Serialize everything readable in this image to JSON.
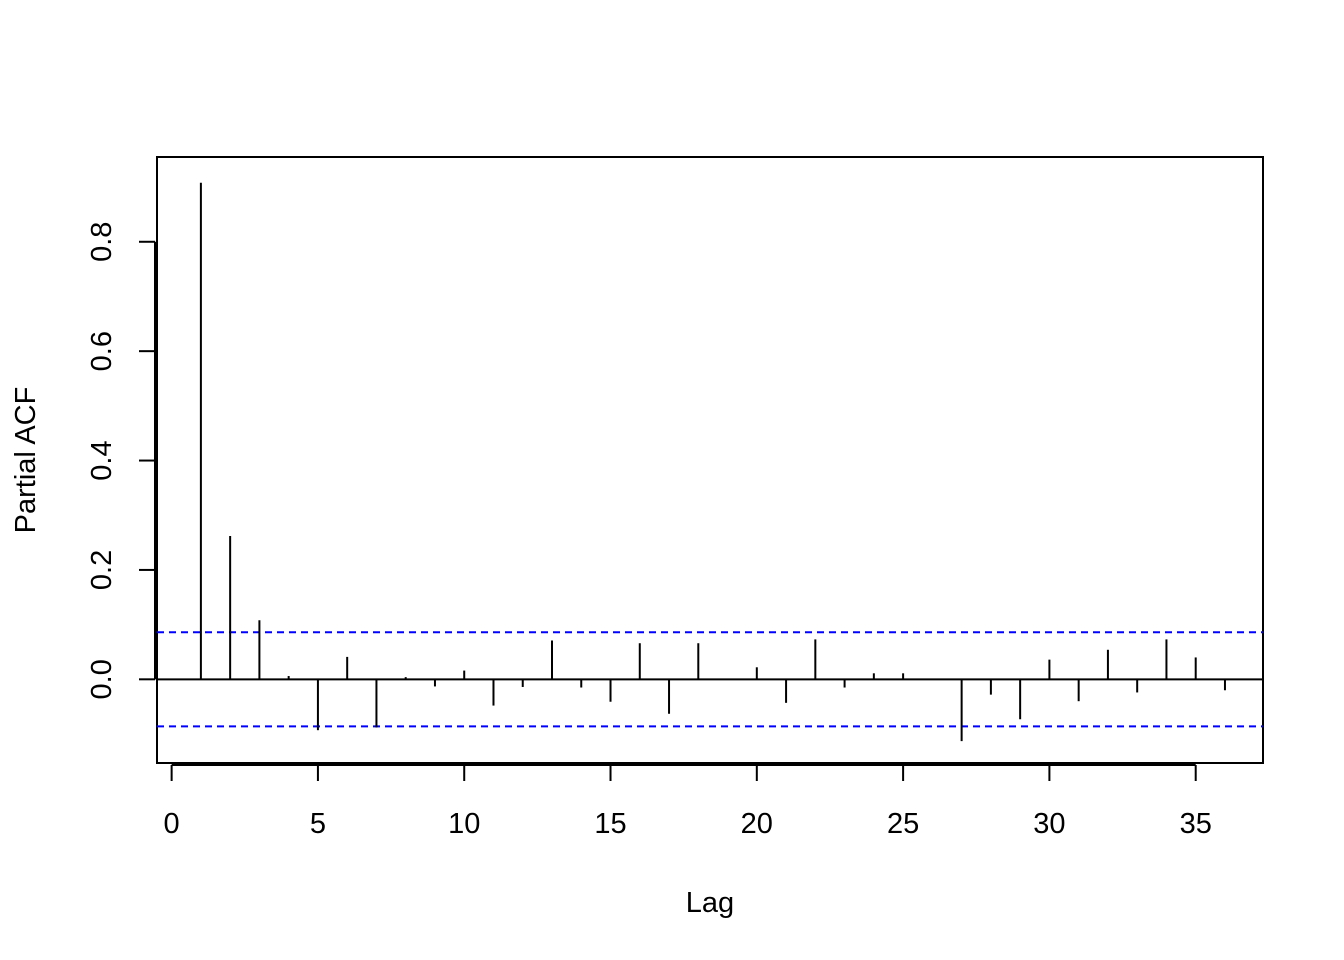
{
  "chart_data": {
    "type": "bar",
    "title": "",
    "xlabel": "Lag",
    "ylabel": "Partial ACF",
    "xlim": [
      -0.5,
      37.3
    ],
    "ylim": [
      -0.153,
      0.955
    ],
    "x_ticks": [
      0,
      5,
      10,
      15,
      20,
      25,
      30,
      35
    ],
    "y_ticks": [
      0.0,
      0.2,
      0.4,
      0.6,
      0.8
    ],
    "y_tick_labels": [
      "0.0",
      "0.2",
      "0.4",
      "0.6",
      "0.8"
    ],
    "confidence_band": 0.086,
    "confidence_color": "#0000ff",
    "bar_color": "#000000",
    "grid": false,
    "legend": "none",
    "series": [
      {
        "lags": [
          1,
          2,
          3,
          4,
          5,
          6,
          7,
          8,
          9,
          10,
          11,
          12,
          13,
          14,
          15,
          16,
          17,
          18,
          19,
          20,
          21,
          22,
          23,
          24,
          25,
          26,
          27,
          28,
          29,
          30,
          31,
          32,
          33,
          34,
          35,
          36
        ],
        "values": [
          0.908,
          0.262,
          0.108,
          0.006,
          -0.093,
          0.041,
          -0.088,
          0.004,
          -0.013,
          0.016,
          -0.048,
          -0.014,
          0.071,
          -0.015,
          -0.041,
          0.066,
          -0.063,
          0.066,
          0.0,
          0.022,
          -0.043,
          0.073,
          -0.015,
          0.011,
          0.011,
          0.0,
          -0.113,
          -0.028,
          -0.073,
          0.036,
          -0.04,
          0.054,
          -0.024,
          0.073,
          0.04,
          -0.02
        ]
      }
    ]
  }
}
